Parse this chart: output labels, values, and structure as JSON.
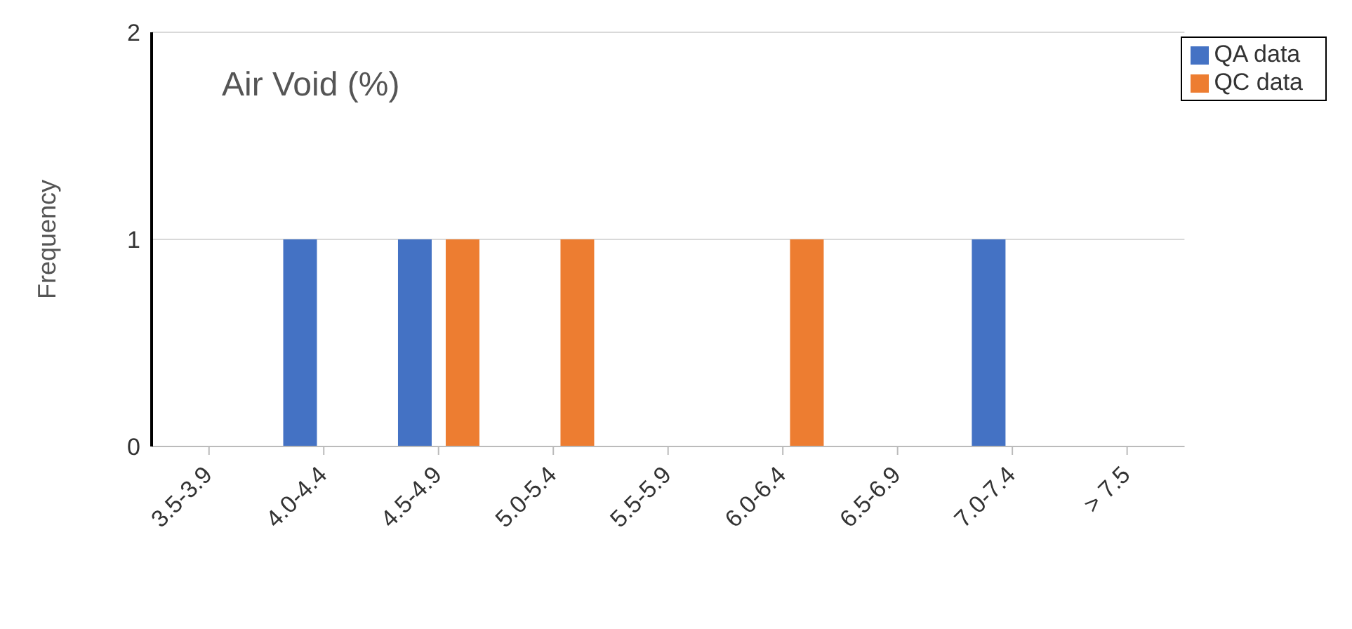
{
  "chart_data": {
    "type": "bar",
    "title": "Air Void (%)",
    "ylabel": "Frequency",
    "categories": [
      "3.5-3.9",
      "4.0-4.4",
      "4.5-4.9",
      "5.0-5.4",
      "5.5-5.9",
      "6.0-6.4",
      "6.5-6.9",
      "7.0-7.4",
      "> 7.5"
    ],
    "series": [
      {
        "name": "QA data",
        "color": "#4472c4",
        "values": [
          0,
          1,
          1,
          0,
          0,
          0,
          0,
          1,
          0
        ]
      },
      {
        "name": "QC data",
        "color": "#ed7d31",
        "values": [
          0,
          0,
          1,
          1,
          0,
          1,
          0,
          0,
          0
        ]
      }
    ],
    "ylim": [
      0,
      2
    ],
    "yticks": [
      0,
      1,
      2
    ],
    "grid": "y",
    "legend": "top right"
  }
}
